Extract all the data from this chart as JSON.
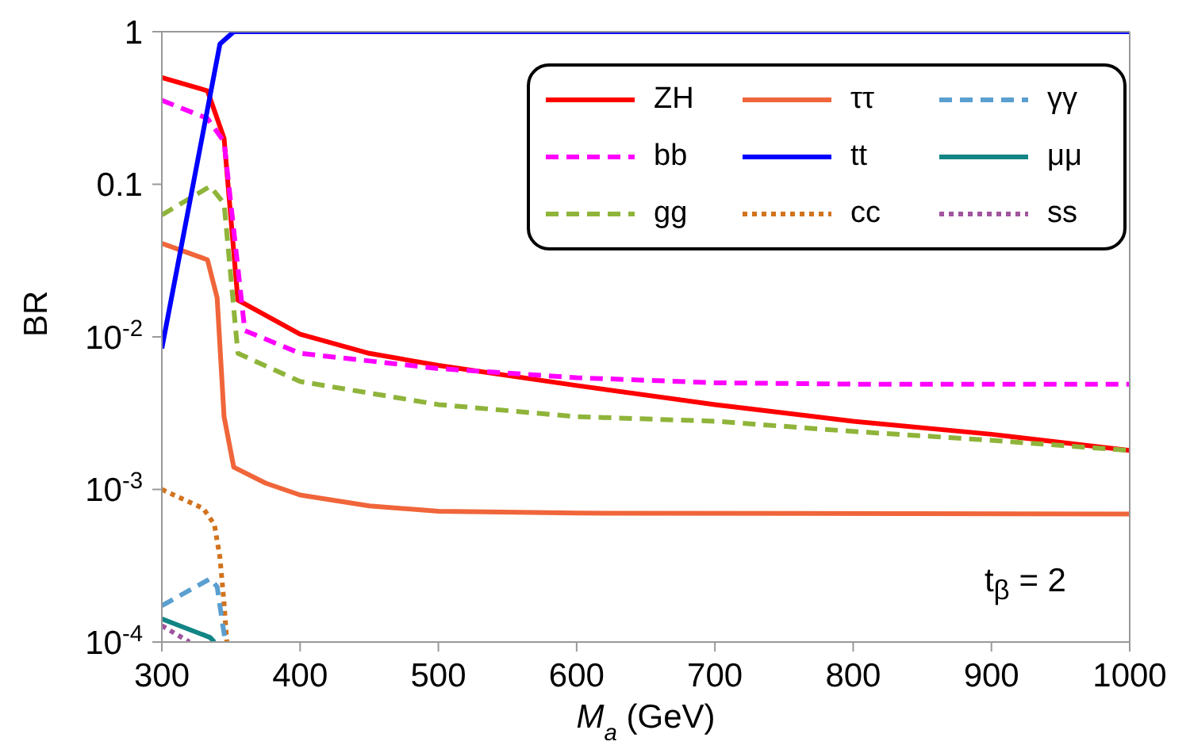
{
  "chart_data": {
    "type": "line",
    "xlabel": "M$_{a}$ (GeV)",
    "ylabel": "BR",
    "log": "y",
    "xlim": [
      300,
      1000
    ],
    "xticks": [
      300,
      400,
      500,
      600,
      700,
      800,
      900,
      1000
    ],
    "ylim": [
      0.0001,
      1
    ],
    "yticks": [
      {
        "value": 0.0001,
        "label": "10$^{-4}$"
      },
      {
        "value": 0.001,
        "label": "10$^{-3}$"
      },
      {
        "value": 0.01,
        "label": "10$^{-2}$"
      },
      {
        "value": 0.1,
        "label": "0.1"
      },
      {
        "value": 1,
        "label": "1"
      }
    ],
    "legend": "top right",
    "marker": "none",
    "annotations": [
      "t$_{β}$ = 2"
    ],
    "series": [
      {
        "name": "ZH",
        "color": "#ff0000",
        "line_style": "solid",
        "x": [
          300,
          333,
          345,
          355,
          400,
          450,
          500,
          600,
          700,
          800,
          900,
          1000
        ],
        "values": [
          0.5,
          0.41,
          0.2,
          0.0174,
          0.0104,
          0.0078,
          0.0065,
          0.0048,
          0.0036,
          0.0028,
          0.0023,
          0.0018
        ]
      },
      {
        "name": "bb",
        "color": "#ff00ff",
        "line_style": "dashed",
        "x": [
          300,
          333,
          345,
          360,
          400,
          500,
          600,
          700,
          800,
          1000
        ],
        "values": [
          0.355,
          0.27,
          0.19,
          0.011,
          0.0078,
          0.0062,
          0.0054,
          0.005,
          0.0049,
          0.0049
        ]
      },
      {
        "name": "gg",
        "color": "#8fb43a",
        "line_style": "dashed",
        "x": [
          300,
          335,
          345,
          355,
          400,
          500,
          600,
          700,
          800,
          900,
          1000
        ],
        "values": [
          0.063,
          0.097,
          0.075,
          0.0078,
          0.0051,
          0.0036,
          0.003,
          0.0028,
          0.0024,
          0.0021,
          0.0018
        ]
      },
      {
        "name": "ττ",
        "color": "#f0653a",
        "line_style": "solid",
        "x": [
          300,
          333,
          340,
          345,
          352,
          375,
          400,
          450,
          500,
          600,
          1000
        ],
        "values": [
          0.041,
          0.032,
          0.018,
          0.003,
          0.0014,
          0.0011,
          0.00092,
          0.00078,
          0.00072,
          0.0007,
          0.00069
        ]
      },
      {
        "name": "tt",
        "color": "#0000ff",
        "line_style": "solid",
        "x": [
          300,
          342,
          352,
          400,
          600,
          800,
          1000
        ],
        "values": [
          0.0084,
          0.83,
          1,
          1,
          1,
          1,
          1
        ]
      },
      {
        "name": "cc",
        "color": "#d2731e",
        "line_style": "dotted",
        "x": [
          300,
          330,
          338,
          342,
          345,
          347
        ],
        "values": [
          0.001,
          0.00075,
          0.00059,
          0.00036,
          0.00018,
          0.0001
        ]
      },
      {
        "name": "γγ",
        "color": "#5a9fd0",
        "line_style": "dashed",
        "x": [
          300,
          335,
          340,
          344,
          346
        ],
        "values": [
          0.000173,
          0.00026,
          0.00023,
          0.00013,
          0.0001
        ]
      },
      {
        "name": "μμ",
        "color": "#138585",
        "line_style": "solid",
        "x": [
          300,
          335,
          338
        ],
        "values": [
          0.000142,
          0.000107,
          0.0001
        ]
      },
      {
        "name": "ss",
        "color": "#a0559e",
        "line_style": "dotted",
        "x": [
          300,
          320
        ],
        "values": [
          0.000128,
          0.0001
        ]
      }
    ]
  }
}
